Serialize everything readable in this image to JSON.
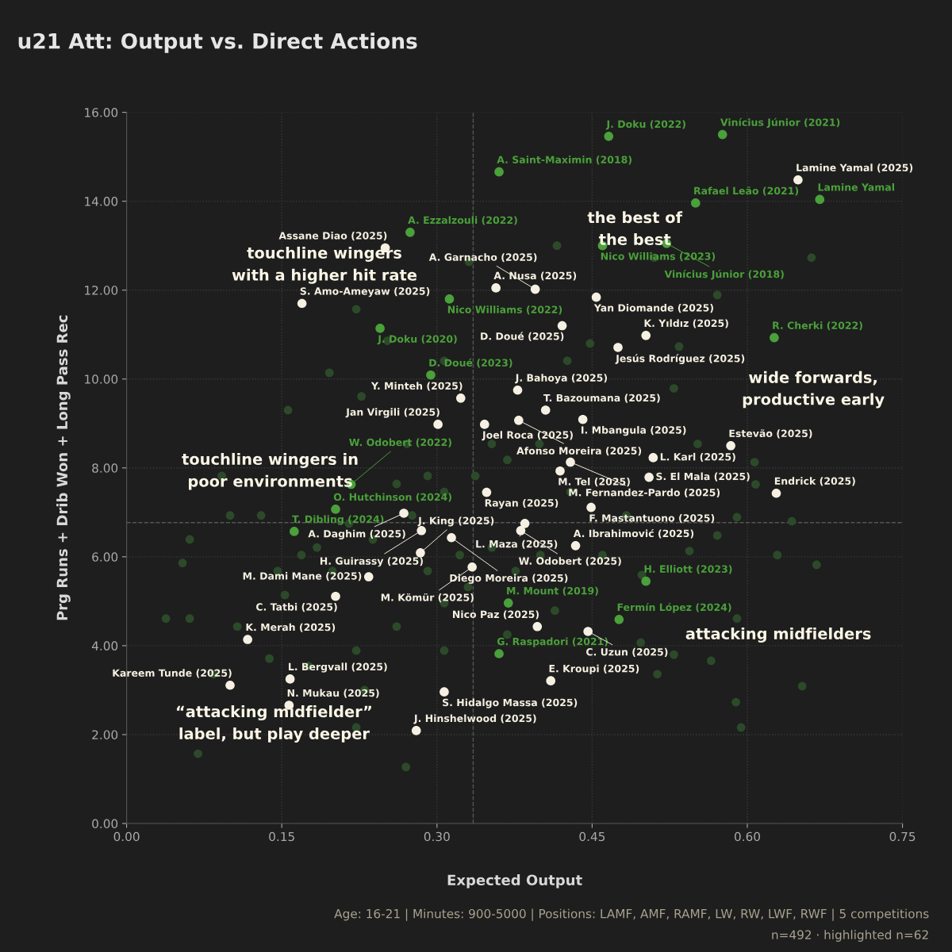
{
  "chart_data": {
    "type": "scatter",
    "title": "u21 Att: Output vs. Direct Actions",
    "xlabel": "Expected Output",
    "ylabel": "Prg Runs + Drib Won + Long Pass Rec",
    "xlim": [
      0,
      0.75
    ],
    "ylim": [
      0,
      16
    ],
    "xticks": [
      {
        "value": 0,
        "label": "0.00"
      },
      {
        "value": 0.15,
        "label": "0.15"
      },
      {
        "value": 0.3,
        "label": "0.30"
      },
      {
        "value": 0.45,
        "label": "0.45"
      },
      {
        "value": 0.6,
        "label": "0.60"
      },
      {
        "value": 0.75,
        "label": "0.75"
      }
    ],
    "yticks": [
      {
        "value": 0,
        "label": "0.00"
      },
      {
        "value": 2,
        "label": "2.00"
      },
      {
        "value": 4,
        "label": "4.00"
      },
      {
        "value": 6,
        "label": "6.00"
      },
      {
        "value": 8,
        "label": "8.00"
      },
      {
        "value": 10,
        "label": "10.00"
      },
      {
        "value": 12,
        "label": "12.00"
      },
      {
        "value": 14,
        "label": "14.00"
      },
      {
        "value": 16,
        "label": "16.00"
      }
    ],
    "grid": true,
    "marker": "circle",
    "ref_lines": [
      {
        "axis": "x",
        "value": 0.335,
        "color": "#555555",
        "line_style": "dashed"
      },
      {
        "axis": "y",
        "value": 6.77,
        "color": "#555555",
        "line_style": "dashed"
      }
    ],
    "series": [
      {
        "color": "#2c4a29",
        "x": [
          0.662,
          0.51,
          0.416,
          0.448,
          0.534,
          0.571,
          0.331,
          0.222,
          0.252,
          0.307,
          0.426,
          0.529,
          0.552,
          0.607,
          0.608,
          0.643,
          0.59,
          0.571,
          0.629,
          0.667,
          0.544,
          0.498,
          0.46,
          0.497,
          0.529,
          0.59,
          0.565,
          0.653,
          0.589,
          0.594,
          0.513,
          0.4,
          0.33,
          0.307,
          0.261,
          0.222,
          0.176,
          0.138,
          0.084,
          0.061,
          0.107,
          0.153,
          0.169,
          0.199,
          0.238,
          0.276,
          0.307,
          0.337,
          0.368,
          0.399,
          0.429,
          0.483,
          0.353,
          0.291,
          0.261,
          0.215,
          0.146,
          0.13,
          0.1,
          0.054,
          0.069,
          0.27,
          0.222,
          0.271,
          0.227,
          0.196,
          0.156,
          0.092,
          0.061,
          0.23,
          0.307,
          0.368,
          0.414,
          0.353,
          0.322,
          0.376,
          0.291,
          0.038,
          0.184
        ],
        "values": [
          12.73,
          12.73,
          13.0,
          10.8,
          10.73,
          11.89,
          12.64,
          11.57,
          10.86,
          10.41,
          10.41,
          9.79,
          8.54,
          8.13,
          7.63,
          6.8,
          6.89,
          6.48,
          6.04,
          5.82,
          6.13,
          5.59,
          6.04,
          4.07,
          3.8,
          4.61,
          3.66,
          3.09,
          2.73,
          2.16,
          3.36,
          6.04,
          5.32,
          4.96,
          4.43,
          3.89,
          3.54,
          3.71,
          3.36,
          4.61,
          4.43,
          5.14,
          6.04,
          5.68,
          6.39,
          6.93,
          7.46,
          7.82,
          8.18,
          8.54,
          7.46,
          6.93,
          8.54,
          7.82,
          7.64,
          6.75,
          5.68,
          6.93,
          6.93,
          5.86,
          1.57,
          1.27,
          2.16,
          8.54,
          9.61,
          10.14,
          9.3,
          7.82,
          6.39,
          3.0,
          3.89,
          4.25,
          4.79,
          6.21,
          6.04,
          5.68,
          5.68,
          4.61,
          6.21
        ]
      },
      {
        "color": "#4aa03a",
        "x": [
          0.466,
          0.576,
          0.36,
          0.55,
          0.67,
          0.274,
          0.46,
          0.522,
          0.312,
          0.245,
          0.626,
          0.294,
          0.217,
          0.202,
          0.162,
          0.502,
          0.369,
          0.476,
          0.36
        ],
        "values": [
          15.46,
          15.5,
          14.66,
          13.96,
          14.04,
          13.3,
          13.0,
          13.05,
          11.8,
          11.14,
          10.93,
          10.09,
          7.63,
          7.07,
          6.57,
          5.45,
          4.96,
          4.59,
          3.82
        ]
      },
      {
        "color": "#f5f0e1",
        "x": [
          0.649,
          0.25,
          0.1695,
          0.357,
          0.395,
          0.454,
          0.421,
          0.502,
          0.475,
          0.378,
          0.323,
          0.405,
          0.301,
          0.346,
          0.379,
          0.441,
          0.584,
          0.509,
          0.429,
          0.419,
          0.505,
          0.348,
          0.628,
          0.449,
          0.268,
          0.385,
          0.381,
          0.314,
          0.285,
          0.284,
          0.234,
          0.334,
          0.202,
          0.434,
          0.117,
          0.1,
          0.158,
          0.157,
          0.28,
          0.307,
          0.41,
          0.397,
          0.446
        ],
        "values": [
          14.48,
          12.95,
          11.7,
          12.05,
          12.02,
          11.84,
          11.2,
          10.98,
          10.71,
          9.75,
          9.57,
          9.3,
          8.98,
          8.98,
          9.07,
          9.09,
          8.5,
          8.23,
          8.13,
          7.93,
          7.79,
          7.45,
          7.43,
          7.11,
          6.98,
          6.75,
          6.59,
          6.43,
          6.59,
          6.09,
          5.55,
          5.77,
          5.11,
          6.25,
          4.14,
          3.11,
          3.25,
          2.66,
          2.09,
          2.96,
          3.21,
          4.43,
          4.32
        ]
      }
    ],
    "annotations": [
      {
        "text": "J. Doku (2022)",
        "x": 0.466,
        "y": 15.46
      },
      {
        "text": "Vinícius Júnior (2021)",
        "x": 0.576,
        "y": 15.5
      },
      {
        "text": "A. Saint-Maximin (2018)",
        "x": 0.36,
        "y": 14.66
      },
      {
        "text": "Rafael Leão (2021)",
        "x": 0.55,
        "y": 13.96
      },
      {
        "text": "Lamine Yamal",
        "x": 0.67,
        "y": 14.04
      },
      {
        "text": "A. Ezzalzouli (2022)",
        "x": 0.274,
        "y": 13.3
      },
      {
        "text": "Nico Williams (2023)",
        "x": 0.46,
        "y": 13.0
      },
      {
        "text": "Vinícius Júnior (2018)",
        "x": 0.522,
        "y": 13.05
      },
      {
        "text": "Nico Williams (2022)",
        "x": 0.312,
        "y": 11.8
      },
      {
        "text": "J. Doku (2020)",
        "x": 0.245,
        "y": 11.14
      },
      {
        "text": "R. Cherki (2022)",
        "x": 0.626,
        "y": 10.93
      },
      {
        "text": "D. Doué (2023)",
        "x": 0.294,
        "y": 10.09
      },
      {
        "text": "W. Odobert (2022)",
        "x": 0.217,
        "y": 7.63
      },
      {
        "text": "O. Hutchinson (2024)",
        "x": 0.202,
        "y": 7.07
      },
      {
        "text": "T. Dibling (2024)",
        "x": 0.162,
        "y": 6.57
      },
      {
        "text": "H. Elliott (2023)",
        "x": 0.502,
        "y": 5.45
      },
      {
        "text": "M. Mount (2019)",
        "x": 0.369,
        "y": 4.96
      },
      {
        "text": "Fermín López (2024)",
        "x": 0.476,
        "y": 4.59
      },
      {
        "text": "G. Raspadori (2021)",
        "x": 0.36,
        "y": 3.82
      },
      {
        "text": "Lamine Yamal (2025)",
        "x": 0.649,
        "y": 14.48
      },
      {
        "text": "Assane Diao (2025)",
        "x": 0.25,
        "y": 12.95
      },
      {
        "text": "S. Amo-Ameyaw (2025)",
        "x": 0.1695,
        "y": 11.7
      },
      {
        "text": "A. Nusa (2025)",
        "x": 0.357,
        "y": 12.05
      },
      {
        "text": "A. Garnacho (2025)",
        "x": 0.395,
        "y": 12.02
      },
      {
        "text": "Yan Diomande (2025)",
        "x": 0.454,
        "y": 11.84
      },
      {
        "text": "D. Doué (2025)",
        "x": 0.421,
        "y": 11.2
      },
      {
        "text": "K. Yıldız (2025)",
        "x": 0.502,
        "y": 10.98
      },
      {
        "text": "Jesús Rodríguez (2025)",
        "x": 0.475,
        "y": 10.71
      },
      {
        "text": "J. Bahoya (2025)",
        "x": 0.378,
        "y": 9.75
      },
      {
        "text": "Y. Minteh (2025)",
        "x": 0.323,
        "y": 9.57
      },
      {
        "text": "T. Bazoumana (2025)",
        "x": 0.405,
        "y": 9.3
      },
      {
        "text": "Jan Virgili (2025)",
        "x": 0.301,
        "y": 8.98
      },
      {
        "text": "Joel Roca (2025)",
        "x": 0.346,
        "y": 8.98
      },
      {
        "text": "Afonso Moreira (2025)",
        "x": 0.379,
        "y": 9.07
      },
      {
        "text": "I. Mbangula (2025)",
        "x": 0.441,
        "y": 9.09
      },
      {
        "text": "Estevão (2025)",
        "x": 0.584,
        "y": 8.5
      },
      {
        "text": "L. Karl (2025)",
        "x": 0.509,
        "y": 8.23
      },
      {
        "text": "M. Fernandez-Pardo (2025)",
        "x": 0.429,
        "y": 8.13
      },
      {
        "text": "M. Tel (2025)",
        "x": 0.419,
        "y": 7.93
      },
      {
        "text": "S. El Mala (2025)",
        "x": 0.505,
        "y": 7.79
      },
      {
        "text": "Rayan (2025)",
        "x": 0.348,
        "y": 7.45
      },
      {
        "text": "Endrick (2025)",
        "x": 0.628,
        "y": 7.43
      },
      {
        "text": "F. Mastantuono (2025)",
        "x": 0.449,
        "y": 7.11
      },
      {
        "text": "A. Daghim (2025)",
        "x": 0.268,
        "y": 6.98
      },
      {
        "text": "L. Maza (2025)",
        "x": 0.385,
        "y": 6.75
      },
      {
        "text": "W. Odobert (2025)",
        "x": 0.381,
        "y": 6.59
      },
      {
        "text": "Diego Moreira (2025)",
        "x": 0.314,
        "y": 6.43
      },
      {
        "text": "H. Guirassy (2025)",
        "x": 0.285,
        "y": 6.59
      },
      {
        "text": "J. King (2025)",
        "x": 0.284,
        "y": 6.09
      },
      {
        "text": "M. Dami Mane (2025)",
        "x": 0.234,
        "y": 5.55
      },
      {
        "text": "M. Kömür (2025)",
        "x": 0.334,
        "y": 5.77
      },
      {
        "text": "C. Tatbi (2025)",
        "x": 0.202,
        "y": 5.11
      },
      {
        "text": "A. Ibrahimović (2025)",
        "x": 0.434,
        "y": 6.25
      },
      {
        "text": "K. Merah (2025)",
        "x": 0.117,
        "y": 4.14
      },
      {
        "text": "Kareem Tunde (2025)",
        "x": 0.1,
        "y": 3.11
      },
      {
        "text": "L. Bergvall (2025)",
        "x": 0.158,
        "y": 3.25
      },
      {
        "text": "N. Mukau (2025)",
        "x": 0.157,
        "y": 2.66
      },
      {
        "text": "J. Hinshelwood (2025)",
        "x": 0.28,
        "y": 2.09
      },
      {
        "text": "S. Hidalgo Massa (2025)",
        "x": 0.307,
        "y": 2.96
      },
      {
        "text": "E. Kroupi (2025)",
        "x": 0.41,
        "y": 3.21
      },
      {
        "text": "Nico Paz (2025)",
        "x": 0.397,
        "y": 4.43
      },
      {
        "text": "C. Uzun (2025)",
        "x": 0.446,
        "y": 4.32
      },
      "the best of\nthe best",
      "touchline wingers\nwith a higher hit rate",
      "wide forwards,\nproductive early",
      "touchline wingers in\npoor environments",
      "attacking midfielders",
      "“attacking midfielder”\nlabel, but play deeper",
      "Age: 16-21 | Minutes: 900-5000 | Positions: LAMF, AMF, RAMF, LW, RW, LWF, RWF | 5 competitions",
      "n=492 · highlighted n=62"
    ]
  }
}
